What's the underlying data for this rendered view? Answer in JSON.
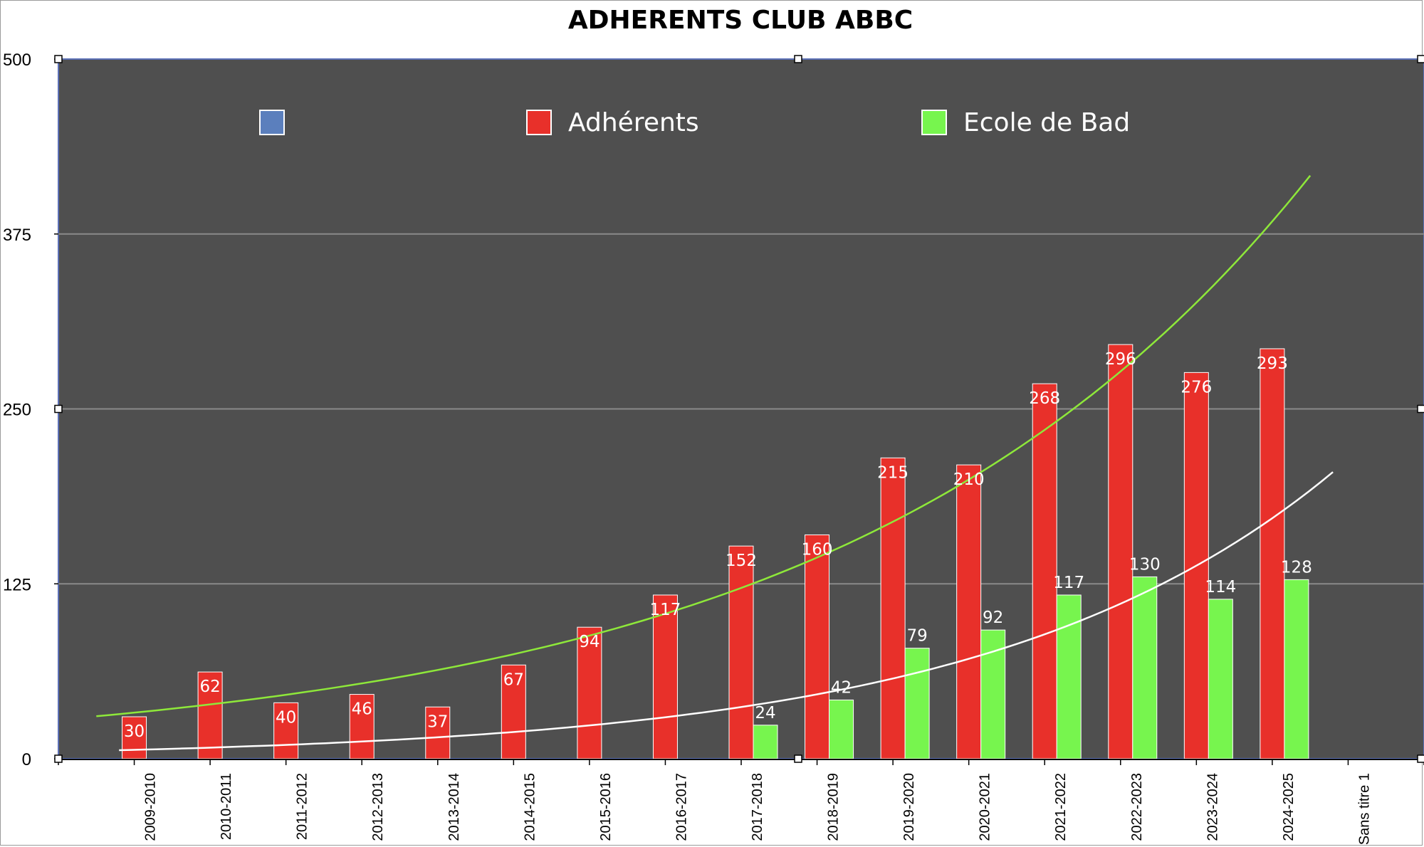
{
  "chart_data": {
    "type": "bar",
    "title": "ADHERENTS CLUB ABBC",
    "categories": [
      "2009-2010",
      "2010-2011",
      "2011-2012",
      "2012-2013",
      "2013-2014",
      "2014-2015",
      "2015-2016",
      "2016-2017",
      "2017-2018",
      "2018-2019",
      "2019-2020",
      "2020-2021",
      "2021-2022",
      "2022-2023",
      "2023-2024",
      "2024-2025",
      "Sans titre 1"
    ],
    "series": [
      {
        "name": "",
        "color": "#5b7fbd",
        "values": [
          null,
          null,
          null,
          null,
          null,
          null,
          null,
          null,
          null,
          null,
          null,
          null,
          null,
          null,
          null,
          null,
          null
        ]
      },
      {
        "name": "Adhérents",
        "color": "#e8302a",
        "values": [
          30,
          62,
          40,
          46,
          37,
          67,
          94,
          117,
          152,
          160,
          215,
          210,
          268,
          296,
          276,
          293,
          null
        ]
      },
      {
        "name": "Ecole de Bad",
        "color": "#77f54e",
        "values": [
          null,
          null,
          null,
          null,
          null,
          null,
          null,
          null,
          24,
          42,
          79,
          92,
          117,
          130,
          114,
          128,
          null
        ]
      }
    ],
    "trendlines": [
      {
        "series": "Adhérents",
        "kind": "exponential",
        "color": "#8ee83a"
      },
      {
        "series": "Ecole de Bad",
        "kind": "exponential",
        "color": "#ffffff"
      }
    ],
    "ylim": [
      0,
      500
    ],
    "yticks": [
      0,
      125,
      250,
      375,
      500
    ],
    "grid": true,
    "legend_position": "top",
    "plot_background": "#4f4f4f",
    "xlabel": "",
    "ylabel": ""
  }
}
